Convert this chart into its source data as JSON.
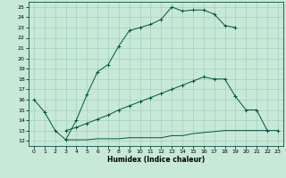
{
  "xlabel": "Humidex (Indice chaleur)",
  "bg_color": "#c8e8d8",
  "grid_color": "#99ccbb",
  "line_color": "#005544",
  "xlim": [
    -0.5,
    23.5
  ],
  "ylim": [
    11.5,
    25.5
  ],
  "xticks": [
    0,
    1,
    2,
    3,
    4,
    5,
    6,
    7,
    8,
    9,
    10,
    11,
    12,
    13,
    14,
    15,
    16,
    17,
    18,
    19,
    20,
    21,
    22,
    23
  ],
  "yticks": [
    12,
    13,
    14,
    15,
    16,
    17,
    18,
    19,
    20,
    21,
    22,
    23,
    24,
    25
  ],
  "line1_x": [
    0,
    1,
    2,
    3,
    4,
    5,
    6,
    7,
    8,
    9,
    10,
    11,
    12,
    13,
    14,
    15,
    16,
    17,
    18,
    19
  ],
  "line1_y": [
    16.0,
    14.8,
    13.0,
    12.1,
    14.0,
    16.5,
    18.7,
    19.4,
    21.2,
    22.7,
    23.0,
    23.3,
    23.8,
    25.0,
    24.6,
    24.7,
    24.7,
    24.3,
    23.2,
    23.0
  ],
  "line2_x": [
    3,
    4,
    5,
    6,
    7,
    8,
    9,
    10,
    11,
    12,
    13,
    14,
    15,
    16,
    17,
    18,
    19,
    20,
    21,
    22,
    23
  ],
  "line2_y": [
    13.0,
    13.3,
    13.7,
    14.1,
    14.5,
    15.0,
    15.4,
    15.8,
    16.2,
    16.6,
    17.0,
    17.4,
    17.8,
    18.2,
    18.0,
    18.0,
    16.3,
    15.0,
    15.0,
    13.0,
    13.0
  ],
  "line3_x": [
    3,
    4,
    5,
    6,
    7,
    8,
    9,
    10,
    11,
    12,
    13,
    14,
    15,
    16,
    17,
    18,
    19,
    20,
    21,
    22
  ],
  "line3_y": [
    12.1,
    12.1,
    12.1,
    12.2,
    12.2,
    12.2,
    12.3,
    12.3,
    12.3,
    12.3,
    12.5,
    12.5,
    12.7,
    12.8,
    12.9,
    13.0,
    13.0,
    13.0,
    13.0,
    13.0
  ]
}
